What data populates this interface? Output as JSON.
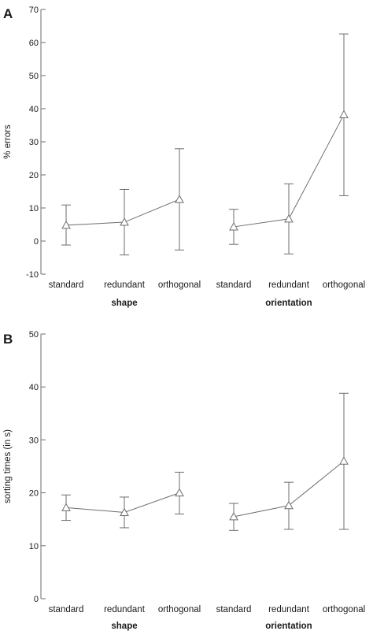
{
  "chart_data": [
    {
      "type": "line",
      "panel_label": "A",
      "ylabel": "% errors",
      "ylim": [
        -10,
        70
      ],
      "yticks": [
        -10,
        0,
        10,
        20,
        30,
        40,
        50,
        60,
        70
      ],
      "groups": [
        {
          "name": "shape",
          "categories": [
            "standard",
            "redundant",
            "orthogonal"
          ],
          "mean": [
            4.8,
            5.7,
            12.6
          ],
          "upper": [
            10.9,
            15.6,
            27.9
          ],
          "lower": [
            -1.2,
            -4.2,
            -2.7
          ]
        },
        {
          "name": "orientation",
          "categories": [
            "standard",
            "redundant",
            "orthogonal"
          ],
          "mean": [
            4.3,
            6.7,
            38.2
          ],
          "upper": [
            9.6,
            17.3,
            62.6
          ],
          "lower": [
            -1.0,
            -3.9,
            13.7
          ]
        }
      ],
      "marker": "open-triangle",
      "grid": false
    },
    {
      "type": "line",
      "panel_label": "B",
      "ylabel": "sorting times (in s)",
      "ylim": [
        0,
        50
      ],
      "yticks": [
        0,
        10,
        20,
        30,
        40,
        50
      ],
      "groups": [
        {
          "name": "shape",
          "categories": [
            "standard",
            "redundant",
            "orthogonal"
          ],
          "mean": [
            17.2,
            16.3,
            20.0
          ],
          "upper": [
            19.6,
            19.2,
            23.9
          ],
          "lower": [
            14.8,
            13.4,
            16.0
          ]
        },
        {
          "name": "orientation",
          "categories": [
            "standard",
            "redundant",
            "orthogonal"
          ],
          "mean": [
            15.5,
            17.6,
            26.0
          ],
          "upper": [
            18.0,
            22.0,
            38.8
          ],
          "lower": [
            12.9,
            13.1,
            13.1
          ]
        }
      ],
      "marker": "open-triangle",
      "grid": false
    }
  ],
  "style": {
    "axis_color": "#6e6e6e",
    "line_color": "#6e6e6e",
    "marker_fill": "#ffffff",
    "text_color": "#1a1a1a"
  }
}
